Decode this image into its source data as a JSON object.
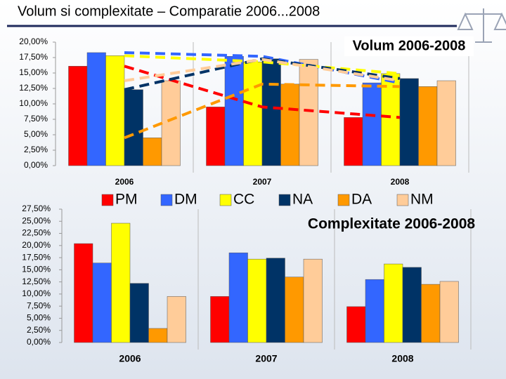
{
  "title": "Volum si complexitate – Comparatie 2006...2008",
  "chart_data": [
    {
      "type": "bar",
      "title": "Volum 2006-2008",
      "categories": [
        "2006",
        "2007",
        "2008"
      ],
      "series": [
        {
          "name": "PM",
          "color": "#ff0000",
          "values": [
            16.1,
            9.5,
            7.8
          ]
        },
        {
          "name": "DM",
          "color": "#3366ff",
          "values": [
            18.3,
            17.7,
            13.4
          ]
        },
        {
          "name": "CC",
          "color": "#ffff00",
          "values": [
            17.8,
            16.8,
            14.9
          ]
        },
        {
          "name": "NA",
          "color": "#003366",
          "values": [
            12.3,
            17.3,
            14.1
          ]
        },
        {
          "name": "DA",
          "color": "#ff9900",
          "values": [
            4.5,
            13.2,
            12.8
          ]
        },
        {
          "name": "NM",
          "color": "#ffcc99",
          "values": [
            13.75,
            17.2,
            13.75
          ]
        }
      ],
      "ylim": [
        0,
        20
      ],
      "yticks": [
        {
          "value": 0,
          "label": "0,00%"
        },
        {
          "value": 2.5,
          "label": "2,50%"
        },
        {
          "value": 5,
          "label": "5,00%"
        },
        {
          "value": 7.5,
          "label": "7,50%"
        },
        {
          "value": 10,
          "label": "10,00%"
        },
        {
          "value": 12.5,
          "label": "12,50%"
        },
        {
          "value": 15,
          "label": "15,00%"
        },
        {
          "value": 17.5,
          "label": "17,50%"
        },
        {
          "value": 20,
          "label": "20,00%"
        }
      ],
      "legend": "bottom",
      "trendline": true
    },
    {
      "type": "bar",
      "title": "Complexitate 2006-2008",
      "categories": [
        "2006",
        "2007",
        "2008"
      ],
      "series": [
        {
          "color": "#ff0000",
          "values": [
            20.4,
            9.5,
            7.4
          ]
        },
        {
          "color": "#3366ff",
          "values": [
            16.4,
            18.5,
            13.0
          ]
        },
        {
          "color": "#ffff00",
          "values": [
            24.6,
            17.2,
            16.2
          ]
        },
        {
          "color": "#003366",
          "values": [
            12.2,
            17.4,
            15.5
          ]
        },
        {
          "color": "#ff9900",
          "values": [
            2.9,
            13.5,
            12.0
          ]
        },
        {
          "color": "#ffcc99",
          "values": [
            9.5,
            17.2,
            12.6
          ]
        }
      ],
      "ylim": [
        0,
        27.5
      ],
      "yticks": [
        {
          "value": 0,
          "label": "0,00%"
        },
        {
          "value": 2.5,
          "label": "2,50%"
        },
        {
          "value": 5,
          "label": "5,00%"
        },
        {
          "value": 7.5,
          "label": "7,50%"
        },
        {
          "value": 10,
          "label": "10,00%"
        },
        {
          "value": 12.5,
          "label": "12,50%"
        },
        {
          "value": 15,
          "label": "15,00%"
        },
        {
          "value": 17.5,
          "label": "17,50%"
        },
        {
          "value": 20,
          "label": "20,00%"
        },
        {
          "value": 22.5,
          "label": "22,50%"
        },
        {
          "value": 25,
          "label": "25,00%"
        },
        {
          "value": 27.5,
          "label": "27,50%"
        }
      ],
      "legend": "none",
      "trendline": false
    }
  ]
}
